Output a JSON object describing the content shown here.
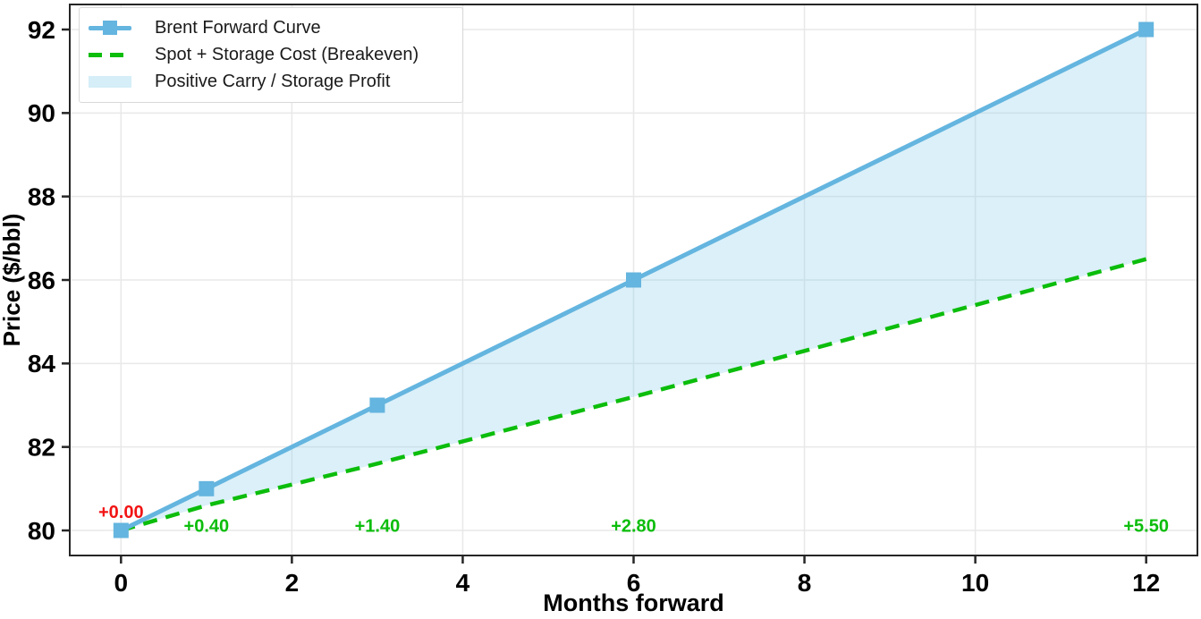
{
  "chart_data": {
    "type": "line",
    "title": "",
    "xlabel": "Months forward",
    "ylabel": "Price ($/bbl)",
    "xlim": [
      -0.6,
      12.6
    ],
    "ylim": [
      79.4,
      92.6
    ],
    "xticks": [
      0,
      2,
      4,
      6,
      8,
      10,
      12
    ],
    "yticks": [
      80,
      82,
      84,
      86,
      88,
      90,
      92
    ],
    "grid": true,
    "legend_position": "upper left",
    "x": [
      0,
      1,
      3,
      6,
      12
    ],
    "series": [
      {
        "name": "Brent Forward Curve",
        "style": "solid",
        "marker": "square",
        "color": "#64b5df",
        "line_width": 5,
        "marker_size": 17,
        "values": [
          80,
          81,
          83,
          86,
          92
        ]
      },
      {
        "name": "Spot + Storage Cost (Breakeven)",
        "style": "dashed",
        "color": "#0cbd0c",
        "line_width": 4.5,
        "dash_pattern": [
          16,
          10
        ],
        "values": [
          80.0,
          80.6,
          81.6,
          83.2,
          86.5
        ]
      }
    ],
    "fill_between": {
      "label": "Positive Carry / Storage Profit",
      "color": "#87ceeb",
      "opacity": 0.3,
      "upper_series": 0,
      "lower_series": 1
    },
    "annotations": [
      {
        "text": "+0.00",
        "x": 0,
        "y": 80.45,
        "color": "#f21414"
      },
      {
        "text": "+0.40",
        "x": 1,
        "y": 80.12,
        "color": "#0cbd0c"
      },
      {
        "text": "+1.40",
        "x": 3,
        "y": 80.12,
        "color": "#0cbd0c"
      },
      {
        "text": "+2.80",
        "x": 6,
        "y": 80.12,
        "color": "#0cbd0c"
      },
      {
        "text": "+5.50",
        "x": 12,
        "y": 80.12,
        "color": "#0cbd0c"
      }
    ],
    "colors": {
      "grid": "#e8e8e8",
      "spine": "#262626",
      "tick_text": "#000000",
      "background": "#ffffff"
    }
  }
}
